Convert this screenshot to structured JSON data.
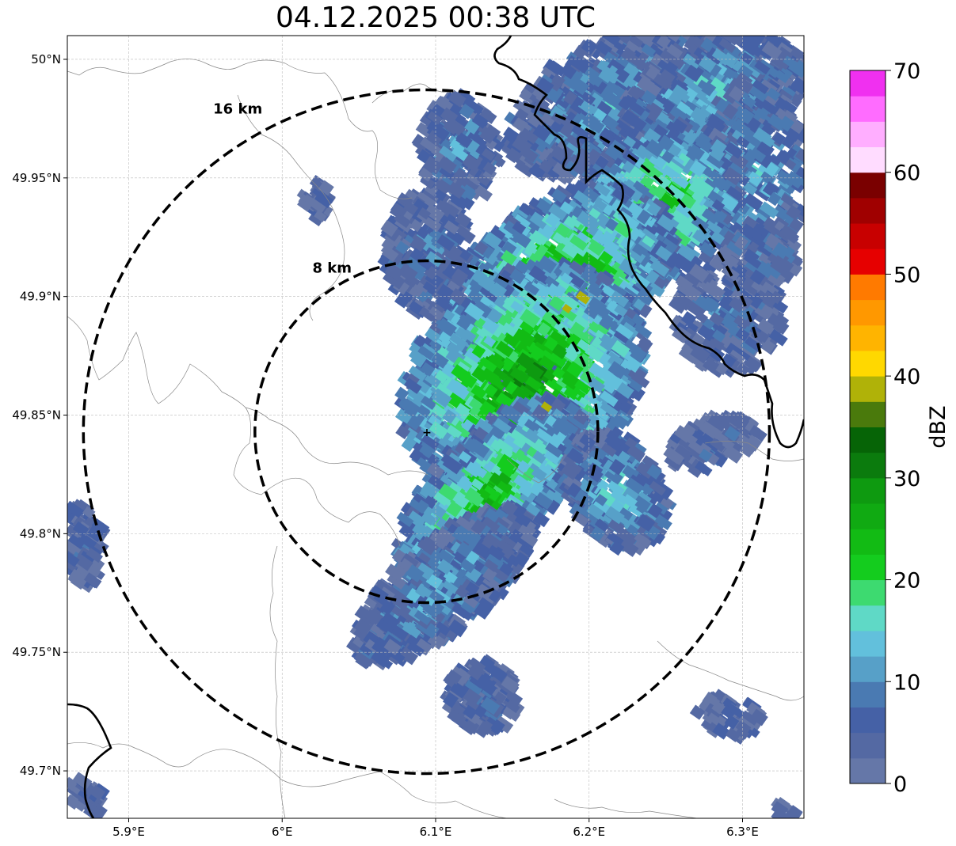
{
  "title": "04.12.2025 00:38 UTC",
  "map": {
    "lon_range": [
      5.86,
      6.34
    ],
    "lat_range": [
      49.68,
      50.01
    ],
    "lon_ticks": [
      5.9,
      6.0,
      6.1,
      6.2,
      6.3
    ],
    "lon_tick_labels": [
      "5.9°E",
      "6°E",
      "6.1°E",
      "6.2°E",
      "6.3°E"
    ],
    "lat_ticks": [
      49.7,
      49.75,
      49.8,
      49.85,
      49.9,
      49.95,
      50.0
    ],
    "lat_tick_labels": [
      "49.7°N",
      "49.75°N",
      "49.8°N",
      "49.85°N",
      "49.9°N",
      "49.95°N",
      "50°N"
    ],
    "grid": true,
    "radar_site": {
      "lon": 6.094,
      "lat": 49.843
    },
    "range_rings": [
      {
        "label": "8 km",
        "radius_km": 8
      },
      {
        "label": "16 km",
        "radius_km": 16
      }
    ]
  },
  "colorbar": {
    "label": "dBZ",
    "ticks": [
      0,
      10,
      20,
      30,
      40,
      50,
      60,
      70
    ],
    "tick_labels": [
      "0",
      "10",
      "20",
      "30",
      "40",
      "50",
      "60",
      "70"
    ],
    "min": 0,
    "max": 70,
    "colors": [
      "#6577a8",
      "#5469a3",
      "#4561a6",
      "#4a7ab2",
      "#57a0c8",
      "#62c0dc",
      "#5fd9c6",
      "#3dda70",
      "#14cc1e",
      "#12bb14",
      "#10aa12",
      "#0e9a10",
      "#0b7b0d",
      "#066406",
      "#4a7a0c",
      "#b0b208",
      "#ffd800",
      "#ffb400",
      "#ff9800",
      "#ff7a00",
      "#e60000",
      "#c80000",
      "#a00000",
      "#7a0000",
      "#ffdcff",
      "#ffaeff",
      "#ff6cff",
      "#f030f0"
    ]
  }
}
